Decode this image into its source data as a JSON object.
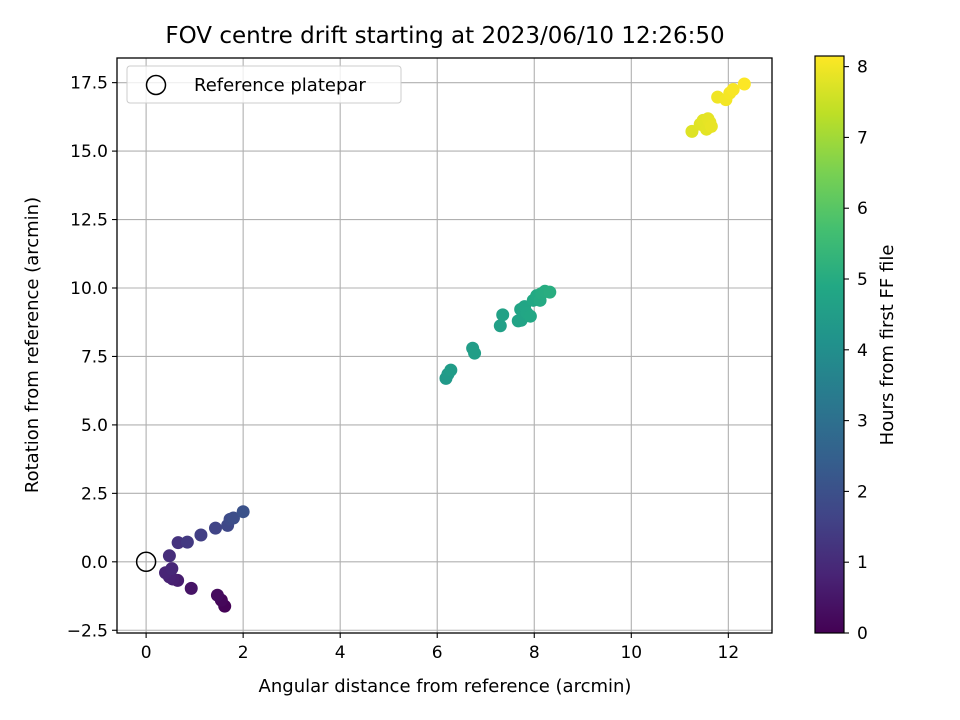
{
  "chart_data": {
    "type": "scatter",
    "title": "FOV centre drift starting at 2023/06/10 12:26:50",
    "xlabel": "Angular distance from reference (arcmin)",
    "ylabel": "Rotation from reference (arcmin)",
    "xlim": [
      -0.6,
      12.9
    ],
    "ylim": [
      -2.6,
      18.4
    ],
    "xticks": [
      0,
      2,
      4,
      6,
      8,
      10,
      12
    ],
    "yticks": [
      -2.5,
      0.0,
      2.5,
      5.0,
      7.5,
      10.0,
      12.5,
      15.0,
      17.5
    ],
    "xtick_labels": [
      "0",
      "2",
      "4",
      "6",
      "8",
      "10",
      "12"
    ],
    "ytick_labels": [
      "−2.5",
      "0.0",
      "2.5",
      "5.0",
      "7.5",
      "10.0",
      "12.5",
      "15.0",
      "17.5"
    ],
    "grid": true,
    "legend": {
      "placement": "top-left",
      "entries": [
        "Reference platepar"
      ]
    },
    "reference_point": {
      "x": 0.0,
      "y": 0.0,
      "label": "Reference platepar"
    },
    "colorbar": {
      "label": "Hours from first FF file",
      "colormap": "viridis",
      "range": [
        0,
        8.15
      ],
      "ticks": [
        0,
        1,
        2,
        3,
        4,
        5,
        6,
        7,
        8
      ],
      "tick_labels": [
        "0",
        "1",
        "2",
        "3",
        "4",
        "5",
        "6",
        "7",
        "8"
      ]
    },
    "points": [
      {
        "x": 1.62,
        "y": -1.62,
        "hours": 0.05
      },
      {
        "x": 1.55,
        "y": -1.4,
        "hours": 0.15
      },
      {
        "x": 1.47,
        "y": -1.22,
        "hours": 0.25
      },
      {
        "x": 0.93,
        "y": -0.97,
        "hours": 0.45
      },
      {
        "x": 0.65,
        "y": -0.68,
        "hours": 0.65
      },
      {
        "x": 0.55,
        "y": -0.63,
        "hours": 0.72
      },
      {
        "x": 0.48,
        "y": -0.55,
        "hours": 0.78
      },
      {
        "x": 0.4,
        "y": -0.4,
        "hours": 0.85
      },
      {
        "x": 0.53,
        "y": -0.25,
        "hours": 0.9
      },
      {
        "x": 0.48,
        "y": 0.22,
        "hours": 1.05
      },
      {
        "x": 0.66,
        "y": 0.7,
        "hours": 1.2
      },
      {
        "x": 0.85,
        "y": 0.72,
        "hours": 1.35
      },
      {
        "x": 1.13,
        "y": 0.98,
        "hours": 1.5
      },
      {
        "x": 1.43,
        "y": 1.23,
        "hours": 1.65
      },
      {
        "x": 1.68,
        "y": 1.33,
        "hours": 1.75
      },
      {
        "x": 1.73,
        "y": 1.55,
        "hours": 1.85
      },
      {
        "x": 1.8,
        "y": 1.6,
        "hours": 1.92
      },
      {
        "x": 2.0,
        "y": 1.83,
        "hours": 2.05
      },
      {
        "x": 6.18,
        "y": 6.7,
        "hours": 4.35
      },
      {
        "x": 6.22,
        "y": 6.85,
        "hours": 4.4
      },
      {
        "x": 6.28,
        "y": 7.0,
        "hours": 4.45
      },
      {
        "x": 6.73,
        "y": 7.8,
        "hours": 4.5
      },
      {
        "x": 6.77,
        "y": 7.62,
        "hours": 4.55
      },
      {
        "x": 7.3,
        "y": 8.62,
        "hours": 4.6
      },
      {
        "x": 7.35,
        "y": 9.02,
        "hours": 4.65
      },
      {
        "x": 7.67,
        "y": 8.8,
        "hours": 4.7
      },
      {
        "x": 7.73,
        "y": 8.82,
        "hours": 4.72
      },
      {
        "x": 7.72,
        "y": 9.22,
        "hours": 4.75
      },
      {
        "x": 7.8,
        "y": 9.32,
        "hours": 4.78
      },
      {
        "x": 7.85,
        "y": 9.08,
        "hours": 4.82
      },
      {
        "x": 7.92,
        "y": 8.97,
        "hours": 4.85
      },
      {
        "x": 7.98,
        "y": 9.55,
        "hours": 4.88
      },
      {
        "x": 8.05,
        "y": 9.72,
        "hours": 4.92
      },
      {
        "x": 8.12,
        "y": 9.55,
        "hours": 4.95
      },
      {
        "x": 8.15,
        "y": 9.8,
        "hours": 4.98
      },
      {
        "x": 8.22,
        "y": 9.88,
        "hours": 5.02
      },
      {
        "x": 8.32,
        "y": 9.85,
        "hours": 5.05
      },
      {
        "x": 11.25,
        "y": 15.72,
        "hours": 7.75
      },
      {
        "x": 11.42,
        "y": 15.98,
        "hours": 7.78
      },
      {
        "x": 11.48,
        "y": 16.12,
        "hours": 7.8
      },
      {
        "x": 11.55,
        "y": 15.8,
        "hours": 7.82
      },
      {
        "x": 11.58,
        "y": 16.18,
        "hours": 7.84
      },
      {
        "x": 11.62,
        "y": 16.05,
        "hours": 7.86
      },
      {
        "x": 11.65,
        "y": 15.9,
        "hours": 7.88
      },
      {
        "x": 11.78,
        "y": 16.97,
        "hours": 7.98
      },
      {
        "x": 11.95,
        "y": 16.88,
        "hours": 8.02
      },
      {
        "x": 12.03,
        "y": 17.12,
        "hours": 8.05
      },
      {
        "x": 12.1,
        "y": 17.25,
        "hours": 8.08
      },
      {
        "x": 12.33,
        "y": 17.45,
        "hours": 8.14
      }
    ]
  }
}
